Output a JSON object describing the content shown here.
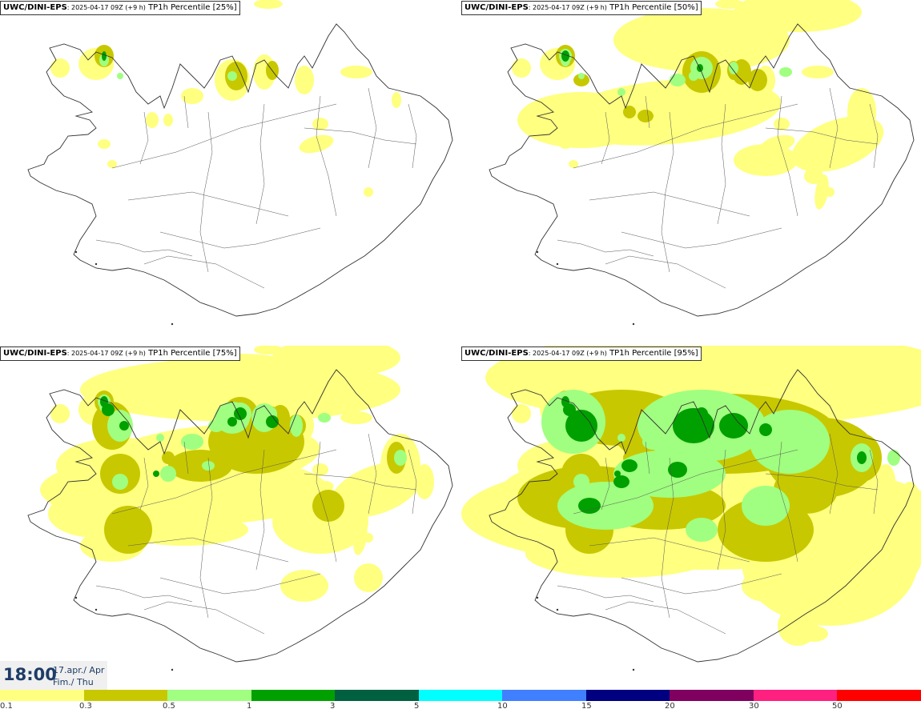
{
  "panels": [
    {
      "model": "UWC/DINI-EPS",
      "run": ": 2025-04-17 09Z (+9 h)",
      "variable": " TP1h Percentile [25%]",
      "level": 0
    },
    {
      "model": "UWC/DINI-EPS",
      "run": ": 2025-04-17 09Z (+9 h)",
      "variable": " TP1h Percentile [50%]",
      "level": 1
    },
    {
      "model": "UWC/DINI-EPS",
      "run": ": 2025-04-17 09Z (+9 h)",
      "variable": " TP1h Percentile [75%]",
      "level": 2
    },
    {
      "model": "UWC/DINI-EPS",
      "run": ": 2025-04-17 09Z (+9 h)",
      "variable": " TP1h Percentile [95%]",
      "level": 3
    }
  ],
  "valid_time": {
    "time": "18:00",
    "date_line1": "17.apr./ Apr",
    "date_line2": "Fim./ Thu"
  },
  "colorbar": {
    "colors": [
      "#ffff80",
      "#c8c800",
      "#a0ff80",
      "#00a000",
      "#006040",
      "#00ffff",
      "#4080ff",
      "#000080",
      "#800060",
      "#ff2080",
      "#ff0000"
    ],
    "labels": [
      "0.1",
      "0.3",
      "0.5",
      "1",
      "3",
      "5",
      "10",
      "15",
      "20",
      "30",
      "50"
    ]
  }
}
